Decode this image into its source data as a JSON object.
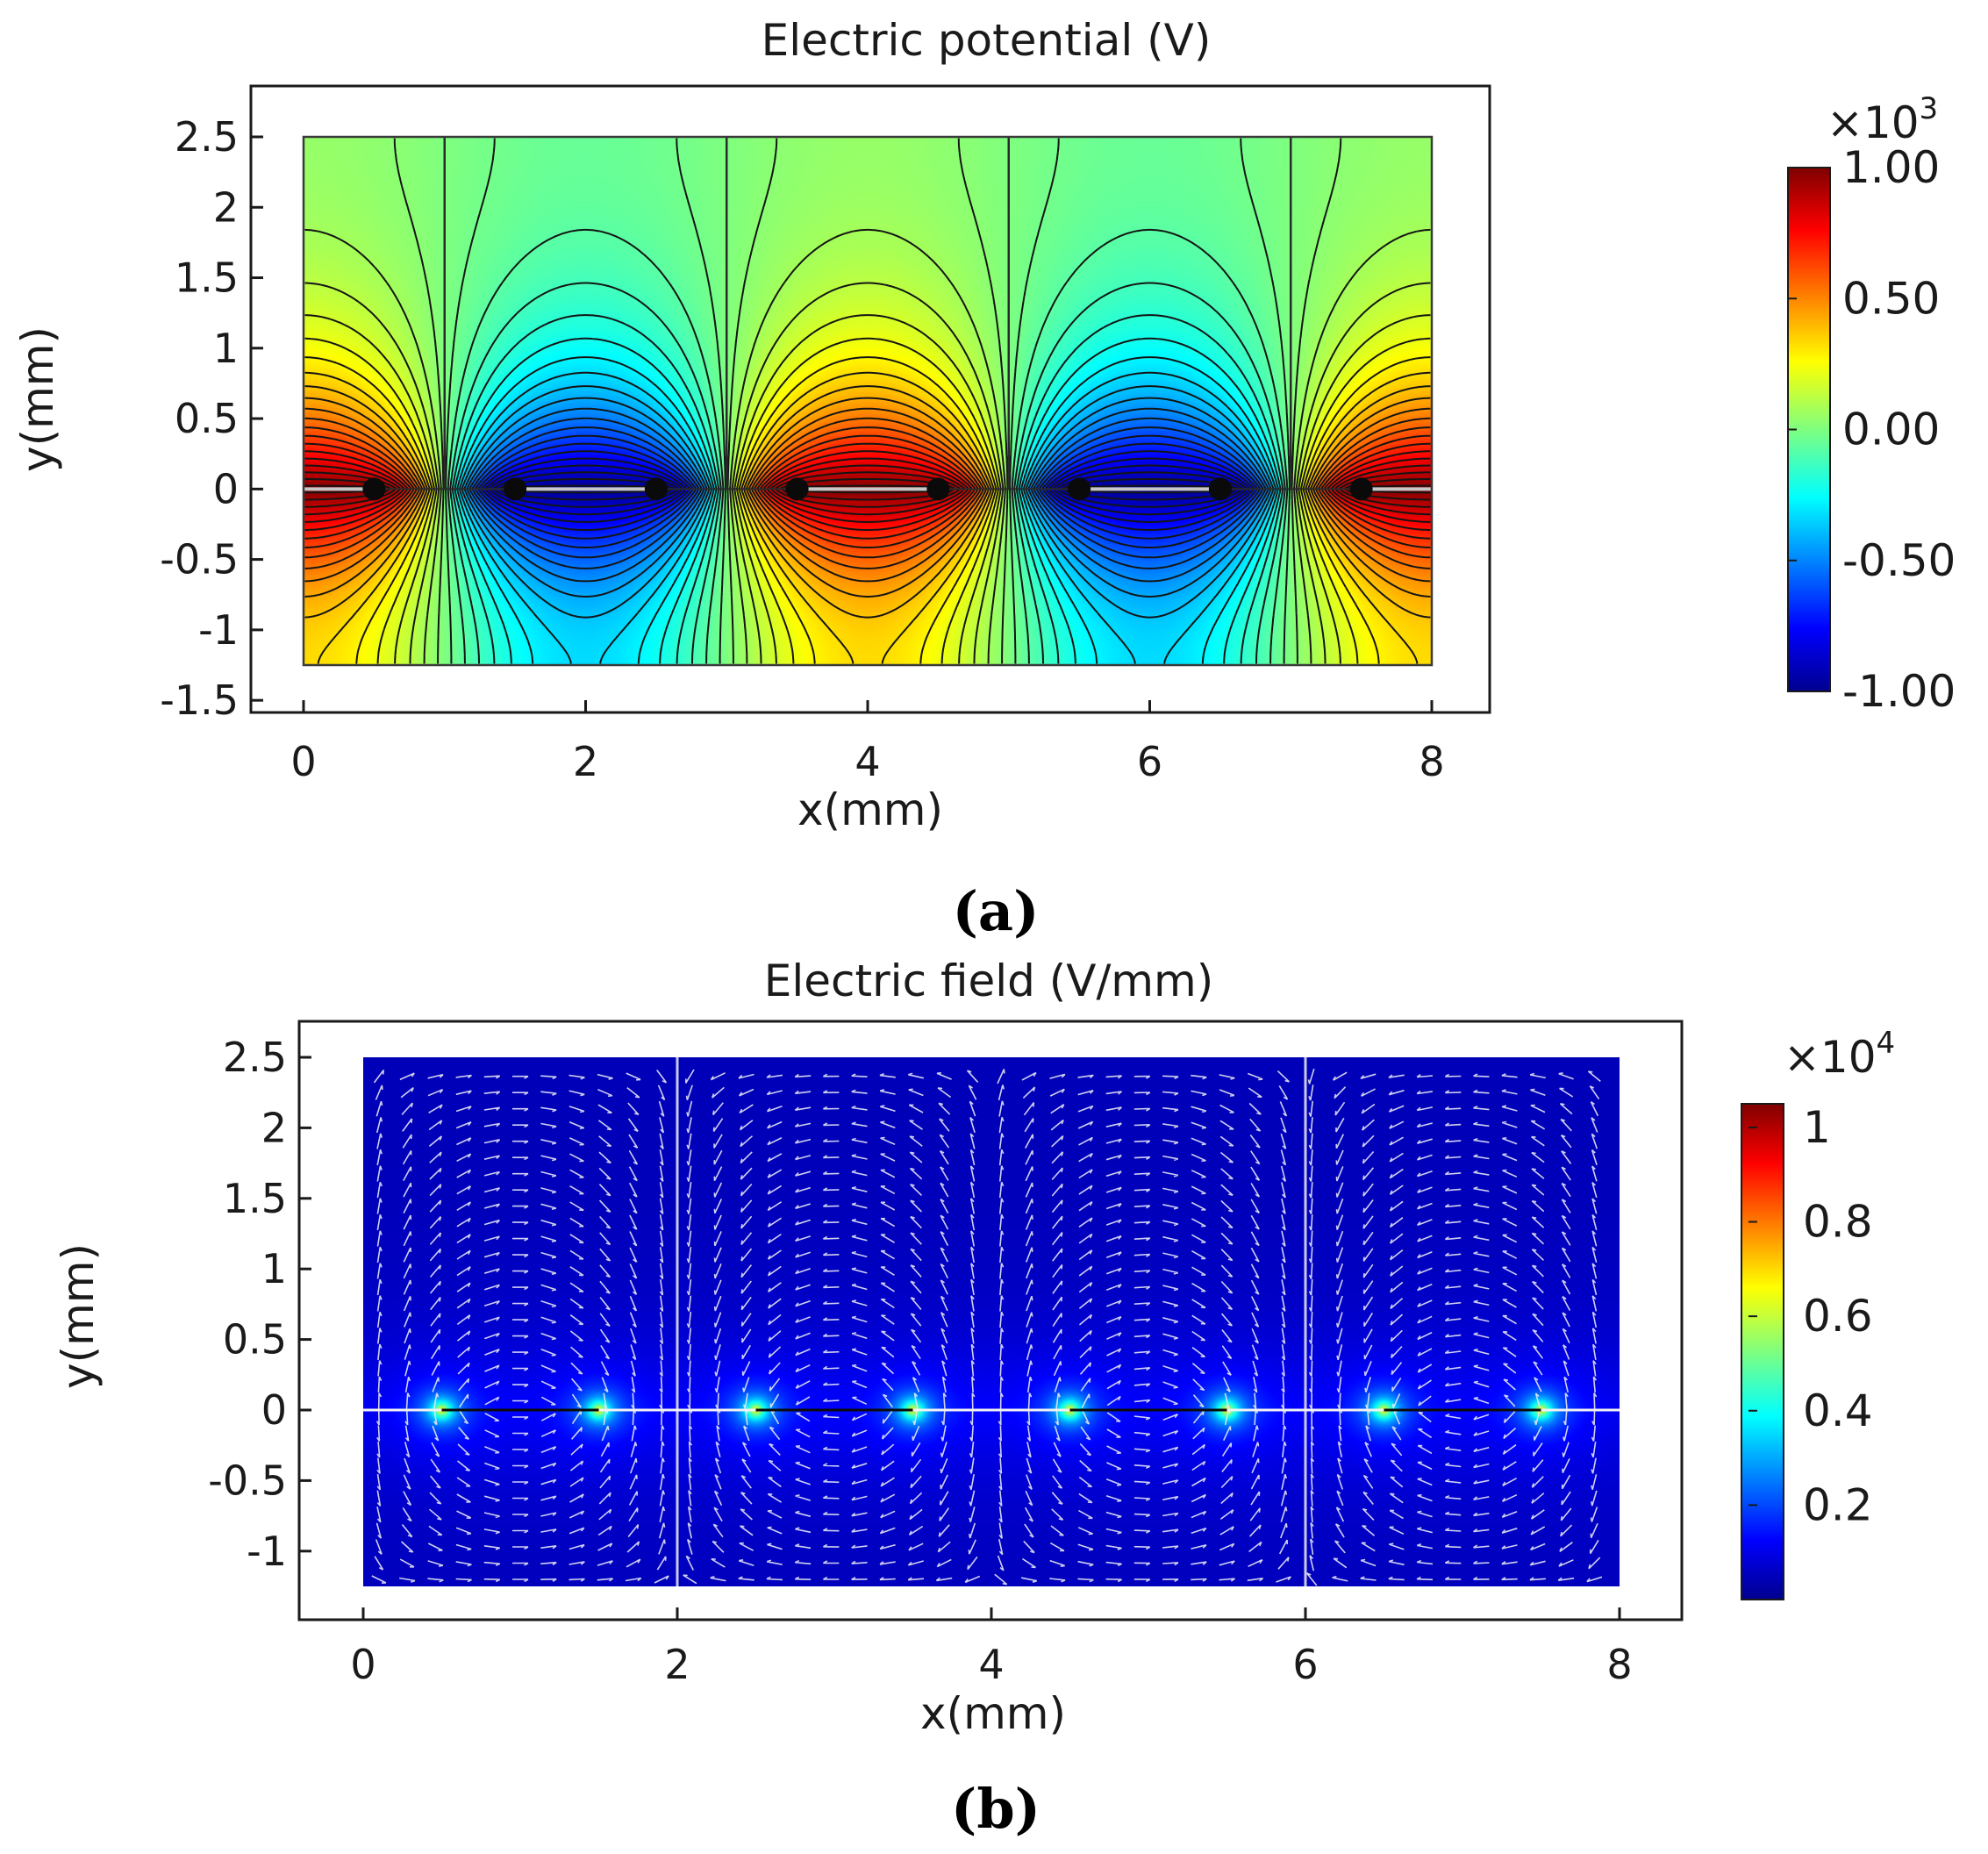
{
  "chart_data": [
    {
      "type": "heatmap",
      "subtype": "contour",
      "panel_label": "a",
      "title": "Electric potential (V)",
      "xlabel": "x(mm)",
      "ylabel": "y(mm)",
      "xlim": [
        -0.4,
        8.4
      ],
      "ylim": [
        -1.6,
        2.8
      ],
      "domain": {
        "x": [
          0,
          8
        ],
        "y": [
          -1.25,
          2.5
        ]
      },
      "xticks": [
        "0",
        "2",
        "4",
        "6",
        "8"
      ],
      "xtick_values": [
        0,
        2,
        4,
        6,
        8
      ],
      "yticks": [
        "2.5",
        "2",
        "1.5",
        "1",
        "0.5",
        "0",
        "-0.5",
        "-1",
        "-1.5"
      ],
      "ytick_values": [
        2.5,
        2,
        1.5,
        1,
        0.5,
        0,
        -0.5,
        -1,
        -1.5
      ],
      "electrodes": [
        {
          "x": [
            0,
            0.5
          ],
          "potential": 1000
        },
        {
          "x": [
            1.5,
            2.5
          ],
          "potential": -1000
        },
        {
          "x": [
            3.5,
            4.5
          ],
          "potential": 1000
        },
        {
          "x": [
            5.5,
            6.5
          ],
          "potential": -1000
        },
        {
          "x": [
            7.5,
            8
          ],
          "potential": 1000
        }
      ],
      "subdomain_boundaries_x": [
        1,
        3,
        5,
        7
      ],
      "colorbar": {
        "multiplier": "×10",
        "exponent": "3",
        "ticks": [
          "1.00",
          "0.50",
          "0.00",
          "-0.50",
          "-1.00"
        ],
        "tick_values": [
          1.0,
          0.5,
          0.0,
          -0.5,
          -1.0
        ],
        "range": [
          -1.0,
          1.0
        ],
        "colormap": "rainbow"
      },
      "contour_count": 40
    },
    {
      "type": "heatmap",
      "subtype": "field-magnitude-with-arrows",
      "panel_label": "b",
      "title": "Electric field (V/mm)",
      "xlabel": "x(mm)",
      "ylabel": "y(mm)",
      "xlim": [
        -0.4,
        8.4
      ],
      "ylim": [
        -1.5,
        2.8
      ],
      "domain": {
        "x": [
          0,
          8
        ],
        "y": [
          -1.25,
          2.5
        ]
      },
      "xticks": [
        "0",
        "2",
        "4",
        "6",
        "8"
      ],
      "xtick_values": [
        0,
        2,
        4,
        6,
        8
      ],
      "yticks": [
        "2.5",
        "2",
        "1.5",
        "1",
        "0.5",
        "0",
        "-0.5",
        "-1"
      ],
      "ytick_values": [
        2.5,
        2,
        1.5,
        1,
        0.5,
        0,
        -0.5,
        -1
      ],
      "field_hotspots_x": [
        0.5,
        1.5,
        2.5,
        3.5,
        4.5,
        5.5,
        6.5,
        7.5
      ],
      "colorbar": {
        "multiplier": "×10",
        "exponent": "4",
        "ticks": [
          "1",
          "0.8",
          "0.6",
          "0.4",
          "0.2"
        ],
        "tick_values": [
          1.0,
          0.8,
          0.6,
          0.4,
          0.2
        ],
        "range": [
          0.0,
          1.05
        ],
        "colormap": "rainbow"
      }
    }
  ],
  "captions": {
    "a": "(a)",
    "b": "(b)"
  }
}
